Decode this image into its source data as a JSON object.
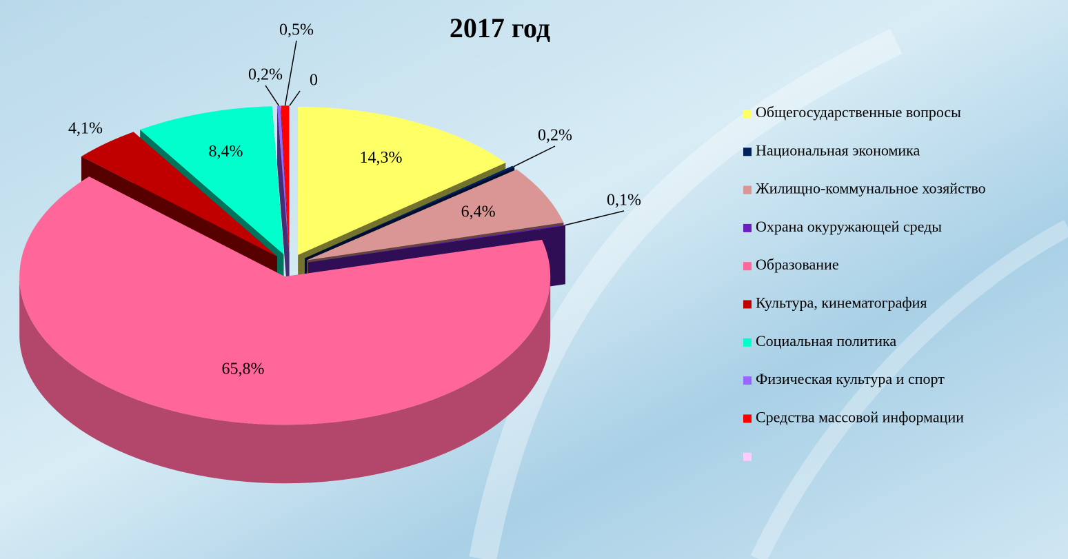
{
  "chart_data": {
    "type": "pie3d",
    "title": "2017 год",
    "categories": [
      "Общегосударственные вопросы",
      "Национальная экономика",
      "Жилищно-коммунальное хозяйство",
      "Охрана окуружающей среды",
      "Образование",
      "Культура, кинематография",
      "Социальная политика",
      "Физическая культура и спорт",
      "Средства массовой информации",
      null
    ],
    "values": [
      14.3,
      0.2,
      6.4,
      0.1,
      65.8,
      4.1,
      8.4,
      0.2,
      0.5,
      0
    ],
    "value_labels": [
      "14,3%",
      "0,2%",
      "6,4%",
      "0,1%",
      "65,8%",
      "4,1%",
      "8,4%",
      "0,2%",
      "0,5%",
      "0"
    ],
    "colors": [
      "#ffff66",
      "#002060",
      "#d99694",
      "#6a1fc0",
      "#ff6699",
      "#c00000",
      "#00ffcc",
      "#9966ff",
      "#ff0000",
      "#ffccff"
    ],
    "legend": "right"
  }
}
